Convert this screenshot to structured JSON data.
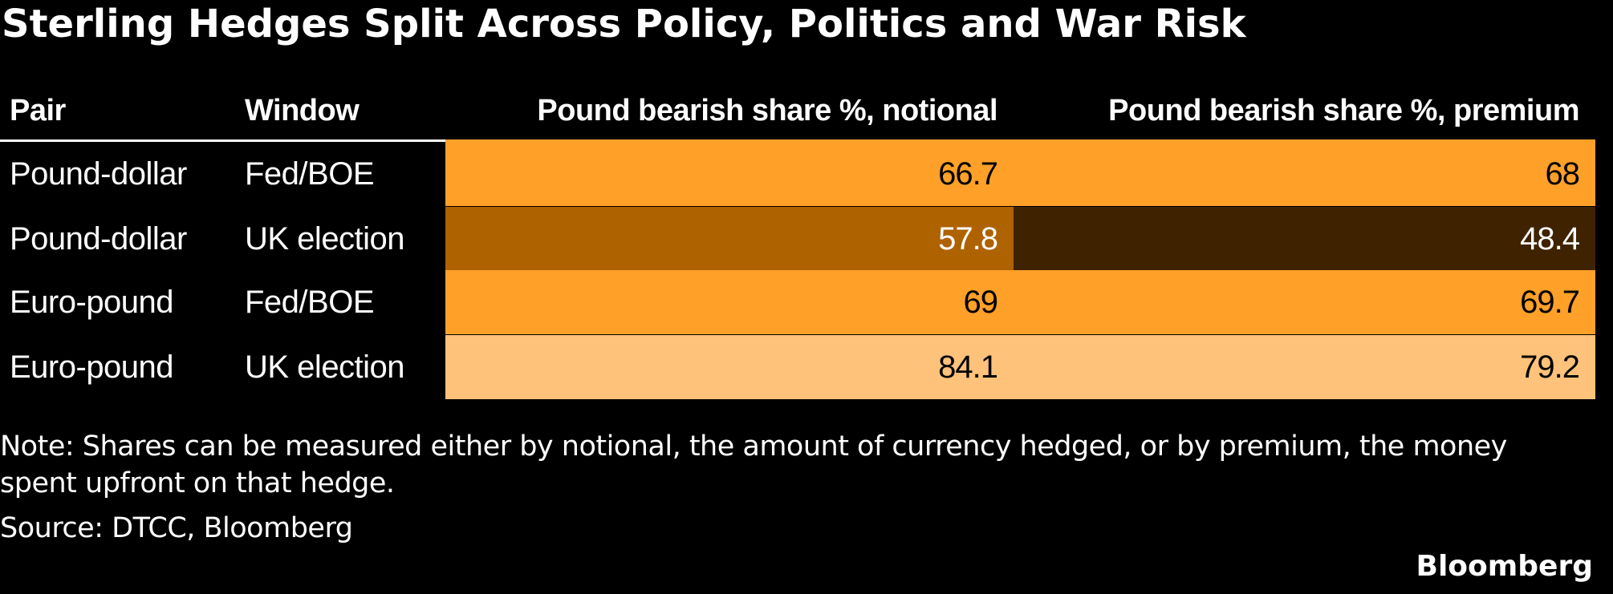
{
  "title": "Sterling Hedges Split Across Policy, Politics and War Risk",
  "colors": {
    "background": "#000000",
    "scale_dark": "#3F2300",
    "scale_mid_dark": "#AE6200",
    "scale_mid": "#FFA028",
    "scale_light": "#FFC27A"
  },
  "chart_data": {
    "type": "table",
    "title": "Sterling Hedges Split Across Policy, Politics and War Risk",
    "columns": [
      "Pair",
      "Window",
      "Pound bearish share %, notional",
      "Pound bearish share %, premium"
    ],
    "rows": [
      {
        "pair": "Pound-dollar",
        "window": "Fed/BOE",
        "notional": "66.7",
        "premium": "68",
        "notional_color": "#FFA028",
        "premium_color": "#FFA028",
        "notional_text": "#000000",
        "premium_text": "#000000"
      },
      {
        "pair": "Pound-dollar",
        "window": "UK election",
        "notional": "57.8",
        "premium": "48.4",
        "notional_color": "#AE6200",
        "premium_color": "#3F2300",
        "notional_text": "#FFFFFF",
        "premium_text": "#FFFFFF"
      },
      {
        "pair": "Euro-pound",
        "window": "Fed/BOE",
        "notional": "69",
        "premium": "69.7",
        "notional_color": "#FFA028",
        "premium_color": "#FFA028",
        "notional_text": "#000000",
        "premium_text": "#000000"
      },
      {
        "pair": "Euro-pound",
        "window": "UK election",
        "notional": "84.1",
        "premium": "79.2",
        "notional_color": "#FFC27A",
        "premium_color": "#FFC27A",
        "notional_text": "#000000",
        "premium_text": "#000000"
      }
    ]
  },
  "note": "Note: Shares can be measured either by notional, the amount of currency hedged, or by premium, the money spent upfront on that hedge.",
  "source": "Source: DTCC, Bloomberg",
  "logo": "Bloomberg"
}
